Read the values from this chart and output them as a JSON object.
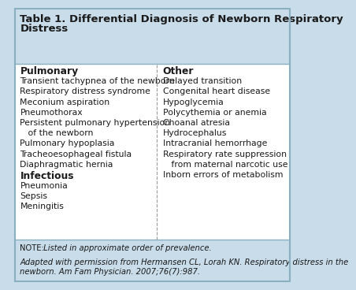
{
  "title_line1": "Table 1. Differential Diagnosis of Newborn Respiratory",
  "title_line2": "Distress",
  "bg_color": "#c8dcea",
  "white_bg": "#ffffff",
  "border_color": "#8aafc0",
  "left_header": "Pulmonary",
  "left_items": [
    [
      "Transient tachypnea of the newborn",
      false
    ],
    [
      "Respiratory distress syndrome",
      false
    ],
    [
      "Meconium aspiration",
      false
    ],
    [
      "Pneumothorax",
      false
    ],
    [
      "Persistent pulmonary hypertension",
      false
    ],
    [
      "   of the newborn",
      false
    ],
    [
      "Pulmonary hypoplasia",
      false
    ],
    [
      "Tracheoesophageal fistula",
      false
    ],
    [
      "Diaphragmatic hernia",
      false
    ]
  ],
  "left_header2": "Infectious",
  "left_items2": [
    [
      "Pneumonia",
      false
    ],
    [
      "Sepsis",
      false
    ],
    [
      "Meningitis",
      false
    ]
  ],
  "right_header": "Other",
  "right_items": [
    [
      "Delayed transition",
      false
    ],
    [
      "Congenital heart disease",
      false
    ],
    [
      "Hypoglycemia",
      false
    ],
    [
      "Polycythemia or anemia",
      false
    ],
    [
      "Choanal atresia",
      false
    ],
    [
      "Hydrocephalus",
      false
    ],
    [
      "Intracranial hemorrhage",
      false
    ],
    [
      "Respiratory rate suppression",
      false
    ],
    [
      "   from maternal narcotic use",
      false
    ],
    [
      "Inborn errors of metabolism",
      false
    ]
  ],
  "note_label": "NOTE:",
  "note_text": " Listed in approximate order of prevalence.",
  "citation": "Adapted with permission from Hermansen CL, Lorah KN. Respiratory distress in the\nnewborn. Am Fam Physician. 2007;76(7):987.",
  "title_fontsize": 9.5,
  "header_fontsize": 8.8,
  "body_fontsize": 7.8,
  "note_fontsize": 7.2,
  "text_color": "#1a1a1a",
  "divider_color": "#999999",
  "col_split": 0.515
}
